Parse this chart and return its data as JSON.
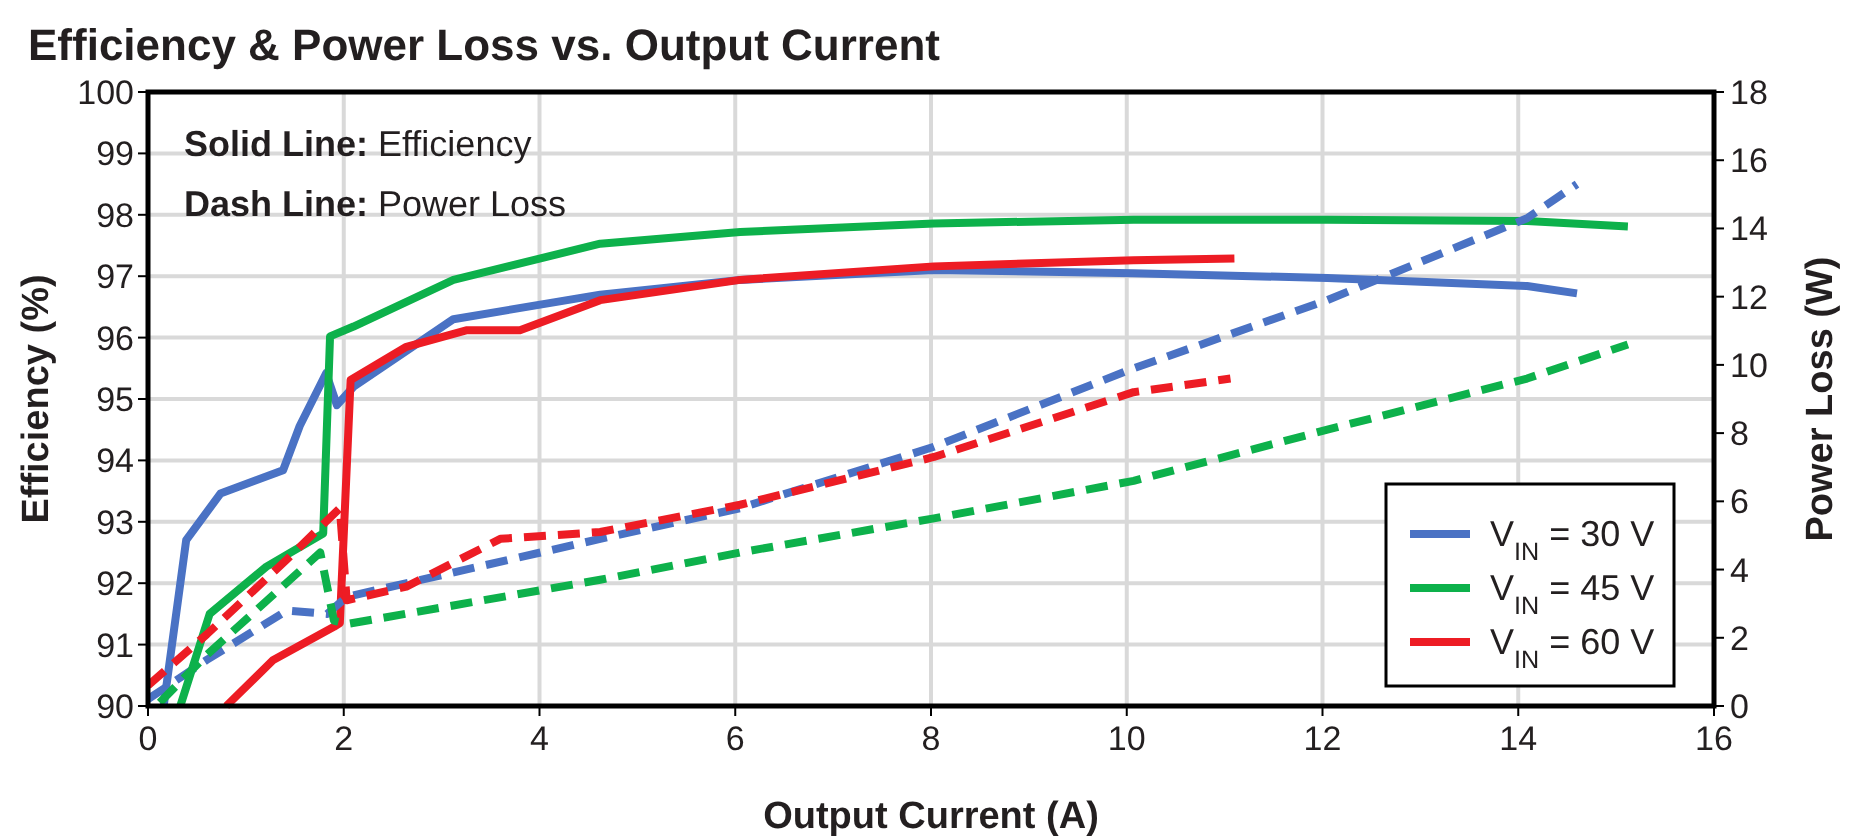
{
  "chart_data": {
    "type": "line",
    "title": "Efficiency & Power Loss vs. Output Current",
    "xlabel": "Output Current (A)",
    "ylabel": "Efficiency (%)",
    "y2label": "Power Loss (W)",
    "annotations": [
      "Solid Line: Efficiency",
      "Dash Line: Power Loss"
    ],
    "xlim": [
      0,
      16
    ],
    "xticks": [
      0,
      2,
      4,
      6,
      8,
      10,
      12,
      14,
      16
    ],
    "ylim": [
      90,
      100
    ],
    "yticks": [
      90,
      91,
      92,
      93,
      94,
      95,
      96,
      97,
      98,
      99,
      100
    ],
    "y2lim": [
      0,
      18
    ],
    "y2ticks": [
      0,
      2,
      4,
      6,
      8,
      10,
      12,
      14,
      16,
      18
    ],
    "grid": true,
    "legend": "bottom right",
    "marker": "none",
    "series": [
      {
        "name": "V$_{IN}$ = 30 V",
        "color": "#4a72c4",
        "line_style": "solid",
        "x": [
          0.16,
          0.39,
          0.74,
          1.38,
          1.55,
          1.82,
          1.93,
          2.1,
          3.12,
          4.62,
          6.05,
          8.03,
          10.07,
          12.05,
          14.09,
          14.6
        ],
        "values": [
          90,
          92.7,
          93.46,
          93.84,
          94.56,
          95.42,
          94.9,
          95.2,
          96.3,
          96.7,
          96.94,
          97.1,
          97.05,
          96.97,
          96.84,
          96.72
        ]
      },
      {
        "name": "V$_{IN}$ = 45 V",
        "color": "#0db14b",
        "line_style": "solid",
        "x": [
          0.33,
          0.63,
          1.21,
          1.79,
          1.86,
          2.1,
          3.12,
          4.62,
          6.05,
          8.03,
          10.07,
          12.05,
          14.09,
          15.12
        ],
        "values": [
          90,
          91.5,
          92.27,
          92.81,
          96.02,
          96.18,
          96.94,
          97.53,
          97.72,
          97.86,
          97.92,
          97.92,
          97.9,
          97.81
        ]
      },
      {
        "name": "V$_{IN}$ = 60 V",
        "color": "#ed1c24",
        "line_style": "solid",
        "x": [
          0.8,
          1.28,
          1.9,
          1.96,
          2.07,
          2.64,
          3.26,
          3.8,
          4.62,
          6.05,
          8.03,
          10.07,
          11.1
        ],
        "values": [
          90,
          90.75,
          91.29,
          91.35,
          95.31,
          95.85,
          96.12,
          96.12,
          96.61,
          96.94,
          97.16,
          97.26,
          97.29
        ]
      },
      {
        "color": "#4a72c4",
        "line_style": "dashed",
        "axis": "y2",
        "x": [
          0,
          0.6,
          1.42,
          1.83,
          2.03,
          4.62,
          6.05,
          8.03,
          10.07,
          12.05,
          14.09,
          14.6
        ],
        "values": [
          0.2,
          1.35,
          2.8,
          2.7,
          3.2,
          4.9,
          5.8,
          7.6,
          9.9,
          11.9,
          14.3,
          15.3
        ]
      },
      {
        "color": "#0db14b",
        "line_style": "dashed",
        "axis": "y2",
        "x": [
          0.12,
          0.6,
          1.76,
          1.9,
          2.03,
          4.62,
          6.05,
          8.03,
          10.07,
          12.05,
          14.09,
          15.12
        ],
        "values": [
          0.1,
          1.5,
          4.5,
          2.5,
          2.4,
          3.7,
          4.5,
          5.5,
          6.6,
          8.1,
          9.6,
          10.6
        ]
      },
      {
        "color": "#ed1c24",
        "line_style": "dashed",
        "axis": "y2",
        "x": [
          0,
          0.6,
          1.42,
          1.96,
          2.03,
          2.64,
          3.6,
          4.62,
          6.05,
          8.03,
          10.07,
          11.06
        ],
        "values": [
          0.6,
          2.1,
          4.3,
          5.8,
          3.1,
          3.5,
          4.9,
          5.1,
          5.9,
          7.3,
          9.2,
          9.6
        ]
      }
    ]
  }
}
